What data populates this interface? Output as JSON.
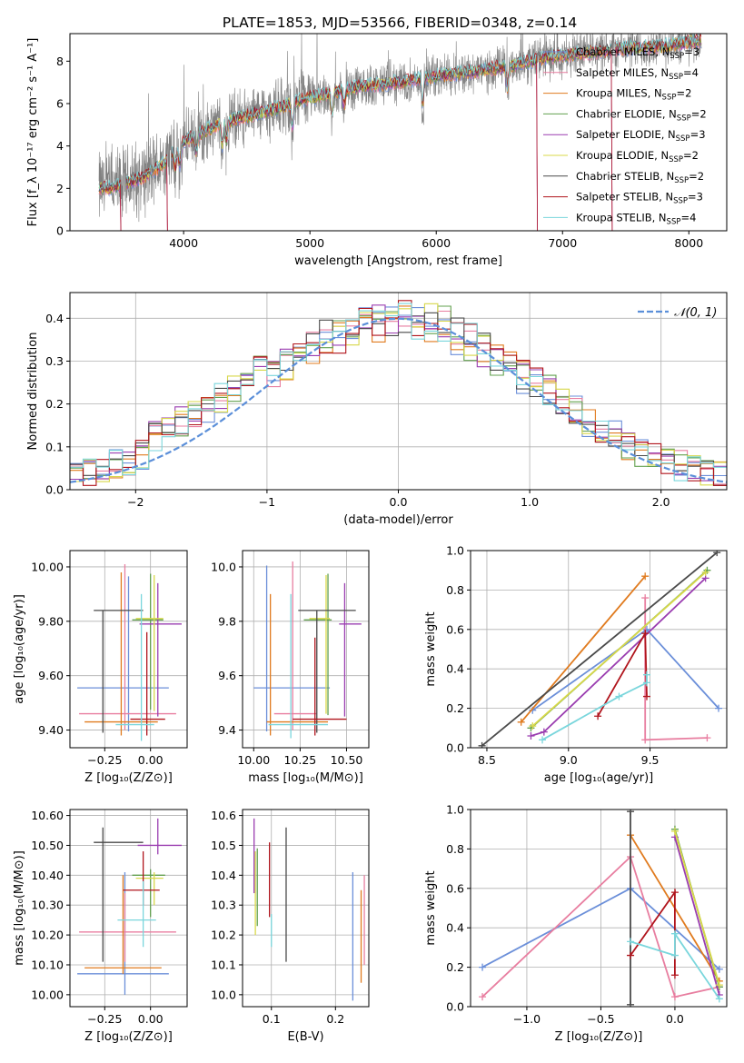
{
  "figure": {
    "suptitle": "PLATE=1853, MJD=53566, FIBERID=0348, z=0.14"
  },
  "series_styles": [
    {
      "name": "Chabrier MILES",
      "nssp": "3",
      "color": "#6b8fd9"
    },
    {
      "name": "Salpeter MILES",
      "nssp": "4",
      "color": "#e87ea0"
    },
    {
      "name": "Kroupa MILES",
      "nssp": "2",
      "color": "#e07b1f"
    },
    {
      "name": "Chabrier ELODIE",
      "nssp": "2",
      "color": "#62a04f"
    },
    {
      "name": "Salpeter ELODIE",
      "nssp": "3",
      "color": "#9a3db0"
    },
    {
      "name": "Kroupa ELODIE",
      "nssp": "2",
      "color": "#d8d84a"
    },
    {
      "name": "Chabrier STELIB",
      "nssp": "2",
      "color": "#4a4a4a"
    },
    {
      "name": "Salpeter STELIB",
      "nssp": "3",
      "color": "#b0141c"
    },
    {
      "name": "Kroupa STELIB",
      "nssp": "4",
      "color": "#7ad6dc"
    }
  ],
  "chart_data": [
    {
      "id": "spectrum",
      "type": "line",
      "xlabel": "wavelength [Angstrom, rest frame]",
      "ylabel": "Flux [f_λ 10⁻¹⁷ erg cm⁻² s⁻¹ A⁻¹]",
      "xlim": [
        3100,
        8300
      ],
      "ylim": [
        0,
        9.3
      ],
      "xticks": [
        4000,
        5000,
        6000,
        7000,
        8000
      ],
      "yticks": [
        0,
        2,
        4,
        6,
        8
      ],
      "data_color": "#808080",
      "continuum_knots": [
        [
          3330,
          2.0
        ],
        [
          3500,
          2.1
        ],
        [
          3700,
          2.6
        ],
        [
          3850,
          3.2
        ],
        [
          3950,
          4.0
        ],
        [
          4100,
          4.5
        ],
        [
          4300,
          5.1
        ],
        [
          4500,
          5.4
        ],
        [
          4700,
          5.7
        ],
        [
          4900,
          6.1
        ],
        [
          5100,
          6.4
        ],
        [
          5400,
          6.8
        ],
        [
          5700,
          7.0
        ],
        [
          6000,
          7.3
        ],
        [
          6300,
          7.5
        ],
        [
          6600,
          7.8
        ],
        [
          6900,
          8.2
        ],
        [
          7200,
          8.4
        ],
        [
          7500,
          8.6
        ],
        [
          7800,
          8.7
        ],
        [
          8100,
          9.0
        ]
      ],
      "absorption_lines": [
        [
          3934,
          0.9
        ],
        [
          3969,
          0.9
        ],
        [
          4101,
          0.6
        ],
        [
          4304,
          0.8
        ],
        [
          4340,
          0.6
        ],
        [
          4861,
          0.7
        ],
        [
          5175,
          0.6
        ],
        [
          5270,
          0.4
        ],
        [
          5893,
          0.6
        ],
        [
          6563,
          0.5
        ]
      ],
      "model_gaps": [
        [
          3500,
          3545
        ],
        [
          3870,
          3905
        ],
        [
          6800,
          6815
        ],
        [
          7390,
          7410
        ]
      ]
    },
    {
      "id": "residuals",
      "type": "histogram",
      "xlabel": "(data-model)/error",
      "ylabel": "Normed distribution",
      "xlim": [
        -2.5,
        2.5
      ],
      "ylim": [
        0,
        0.46
      ],
      "xticks": [
        -2,
        -1,
        0,
        1,
        2
      ],
      "yticks": [
        0,
        0.1,
        0.2,
        0.3,
        0.4
      ],
      "bin_width": 0.1,
      "reference": {
        "label": "𝒩(0, 1)",
        "mean": 0,
        "sigma": 1,
        "color": "#5b8fd9"
      }
    },
    {
      "id": "age-vs-Z",
      "type": "errorbar",
      "xlabel": "Z [log₁₀(Z/Z⊙)]",
      "ylabel": "age  [log₁₀(age/yr)]",
      "xlim": [
        -0.44,
        0.2
      ],
      "ylim": [
        9.335,
        10.06
      ],
      "xticks": [
        -0.25,
        0.0
      ],
      "yticks": [
        9.4,
        9.6,
        9.8,
        10.0
      ],
      "points": [
        {
          "series": 0,
          "x": -0.12,
          "xerr": [
            0.28,
            0.22
          ],
          "y": 9.555,
          "yerr": [
            0.16,
            0.41
          ]
        },
        {
          "series": 1,
          "x": -0.14,
          "xerr": [
            0.25,
            0.28
          ],
          "y": 9.46,
          "yerr": [
            0.06,
            0.55
          ]
        },
        {
          "series": 2,
          "x": -0.16,
          "xerr": [
            0.2,
            0.2
          ],
          "y": 9.43,
          "yerr": [
            0.05,
            0.55
          ]
        },
        {
          "series": 3,
          "x": 0.0,
          "xerr": [
            0.1,
            0.07
          ],
          "y": 9.805,
          "yerr": [
            0.33,
            0.17
          ]
        },
        {
          "series": 4,
          "x": 0.04,
          "xerr": [
            0.1,
            0.13
          ],
          "y": 9.79,
          "yerr": [
            0.34,
            0.15
          ]
        },
        {
          "series": 5,
          "x": 0.02,
          "xerr": [
            0.1,
            0.05
          ],
          "y": 9.81,
          "yerr": [
            0.34,
            0.16
          ]
        },
        {
          "series": 6,
          "x": -0.26,
          "xerr": [
            0.05,
            0.22
          ],
          "y": 9.84,
          "yerr": [
            0.45,
            0.0
          ]
        },
        {
          "series": 7,
          "x": -0.02,
          "xerr": [
            0.09,
            0.1
          ],
          "y": 9.44,
          "yerr": [
            0.06,
            0.32
          ]
        },
        {
          "series": 8,
          "x": -0.05,
          "xerr": [
            0.14,
            0.07
          ],
          "y": 9.42,
          "yerr": [
            0.06,
            0.48
          ]
        }
      ]
    },
    {
      "id": "age-vs-mass",
      "type": "errorbar",
      "xlabel": "mass [log₁₀(M/M⊙)]",
      "ylabel": "",
      "xlim": [
        9.94,
        10.62
      ],
      "ylim": [
        9.335,
        10.06
      ],
      "xticks": [
        10.0,
        10.25,
        10.5
      ],
      "yticks": [
        9.4,
        9.6,
        9.8,
        10.0
      ],
      "points": [
        {
          "series": 0,
          "x": 10.07,
          "xerr": [
            0.07,
            0.34
          ],
          "y": 9.555,
          "yerr": [
            0.16,
            0.45
          ]
        },
        {
          "series": 1,
          "x": 10.21,
          "xerr": [
            0.1,
            0.13
          ],
          "y": 9.46,
          "yerr": [
            0.06,
            0.56
          ]
        },
        {
          "series": 2,
          "x": 10.09,
          "xerr": [
            0.02,
            0.31
          ],
          "y": 9.43,
          "yerr": [
            0.05,
            0.47
          ]
        },
        {
          "series": 3,
          "x": 10.4,
          "xerr": [
            0.13,
            0.02
          ],
          "y": 9.805,
          "yerr": [
            0.35,
            0.17
          ]
        },
        {
          "series": 4,
          "x": 10.49,
          "xerr": [
            0.03,
            0.09
          ],
          "y": 9.79,
          "yerr": [
            0.34,
            0.15
          ]
        },
        {
          "series": 5,
          "x": 10.39,
          "xerr": [
            0.09,
            0.02
          ],
          "y": 9.81,
          "yerr": [
            0.35,
            0.16
          ]
        },
        {
          "series": 6,
          "x": 10.34,
          "xerr": [
            0.1,
            0.21
          ],
          "y": 9.84,
          "yerr": [
            0.45,
            0.0
          ]
        },
        {
          "series": 7,
          "x": 10.33,
          "xerr": [
            0.12,
            0.17
          ],
          "y": 9.44,
          "yerr": [
            0.06,
            0.3
          ]
        },
        {
          "series": 8,
          "x": 10.2,
          "xerr": [
            0.12,
            0.2
          ],
          "y": 9.42,
          "yerr": [
            0.05,
            0.48
          ]
        }
      ]
    },
    {
      "id": "weight-vs-age",
      "type": "line",
      "xlabel": "age  [log₁₀(age/yr)]",
      "ylabel": "mass weight",
      "xlim": [
        8.4,
        9.97
      ],
      "ylim": [
        0,
        1.0
      ],
      "xticks": [
        8.5,
        9.0,
        9.5
      ],
      "yticks": [
        0.0,
        0.2,
        0.4,
        0.6,
        0.8,
        1.0
      ],
      "series": [
        {
          "series": 0,
          "x": [
            8.78,
            9.48,
            9.92
          ],
          "y": [
            0.19,
            0.6,
            0.2
          ]
        },
        {
          "series": 1,
          "x": [
            9.47,
            9.47,
            9.85
          ],
          "y": [
            0.76,
            0.04,
            0.05
          ]
        },
        {
          "series": 2,
          "x": [
            8.71,
            9.47
          ],
          "y": [
            0.13,
            0.87
          ]
        },
        {
          "series": 3,
          "x": [
            8.77,
            9.85
          ],
          "y": [
            0.1,
            0.9
          ]
        },
        {
          "series": 4,
          "x": [
            8.77,
            8.85,
            9.84
          ],
          "y": [
            0.06,
            0.08,
            0.86
          ]
        },
        {
          "series": 5,
          "x": [
            8.78,
            9.84
          ],
          "y": [
            0.11,
            0.89
          ]
        },
        {
          "series": 6,
          "x": [
            8.47,
            9.91
          ],
          "y": [
            0.01,
            0.99
          ]
        },
        {
          "series": 7,
          "x": [
            9.18,
            9.47,
            9.48
          ],
          "y": [
            0.16,
            0.58,
            0.26
          ]
        },
        {
          "series": 8,
          "x": [
            8.84,
            9.31,
            9.48,
            9.48
          ],
          "y": [
            0.04,
            0.26,
            0.33,
            0.37
          ]
        }
      ]
    },
    {
      "id": "mass-vs-Z",
      "type": "errorbar",
      "xlabel": "Z [log₁₀(Z/Z⊙)]",
      "ylabel": "mass [log₁₀(M/M⊙)]",
      "xlim": [
        -0.44,
        0.2
      ],
      "ylim": [
        9.96,
        10.62
      ],
      "xticks": [
        -0.25,
        0.0
      ],
      "yticks": [
        10.0,
        10.1,
        10.2,
        10.3,
        10.4,
        10.5,
        10.6
      ],
      "points": [
        {
          "series": 0,
          "x": -0.14,
          "xerr": [
            0.26,
            0.24
          ],
          "y": 10.07,
          "yerr": [
            0.07,
            0.34
          ]
        },
        {
          "series": 1,
          "x": -0.14,
          "xerr": [
            0.25,
            0.28
          ],
          "y": 10.21,
          "yerr": [
            0.1,
            0.13
          ]
        },
        {
          "series": 2,
          "x": -0.15,
          "xerr": [
            0.21,
            0.21
          ],
          "y": 10.09,
          "yerr": [
            0.02,
            0.31
          ]
        },
        {
          "series": 3,
          "x": 0.0,
          "xerr": [
            0.1,
            0.08
          ],
          "y": 10.4,
          "yerr": [
            0.14,
            0.02
          ]
        },
        {
          "series": 4,
          "x": 0.04,
          "xerr": [
            0.11,
            0.13
          ],
          "y": 10.5,
          "yerr": [
            0.03,
            0.09
          ]
        },
        {
          "series": 5,
          "x": 0.02,
          "xerr": [
            0.1,
            0.05
          ],
          "y": 10.39,
          "yerr": [
            0.09,
            0.02
          ]
        },
        {
          "series": 6,
          "x": -0.26,
          "xerr": [
            0.05,
            0.22
          ],
          "y": 10.51,
          "yerr": [
            0.4,
            0.05
          ]
        },
        {
          "series": 7,
          "x": -0.04,
          "xerr": [
            0.11,
            0.09
          ],
          "y": 10.35,
          "yerr": [
            0.05,
            0.13
          ]
        },
        {
          "series": 8,
          "x": -0.04,
          "xerr": [
            0.14,
            0.07
          ],
          "y": 10.25,
          "yerr": [
            0.09,
            0.13
          ]
        }
      ]
    },
    {
      "id": "mass-vs-EBV",
      "type": "errorbar",
      "xlabel": "E(B-V)",
      "ylabel": "",
      "xlim": [
        0.055,
        0.252
      ],
      "ylim": [
        9.96,
        10.62
      ],
      "xticks": [
        0.1,
        0.2
      ],
      "yticks": [
        10.0,
        10.1,
        10.2,
        10.3,
        10.4,
        10.5,
        10.6
      ],
      "points": [
        {
          "series": 0,
          "x": 0.227,
          "y": 10.2,
          "yerr": [
            0.22,
            0.21
          ]
        },
        {
          "series": 1,
          "x": 0.245,
          "y": 10.3,
          "yerr": [
            0.2,
            0.1
          ]
        },
        {
          "series": 2,
          "x": 0.24,
          "y": 10.18,
          "yerr": [
            0.14,
            0.17
          ]
        },
        {
          "series": 3,
          "x": 0.078,
          "y": 10.37,
          "yerr": [
            0.14,
            0.12
          ]
        },
        {
          "series": 4,
          "x": 0.073,
          "y": 10.47,
          "yerr": [
            0.13,
            0.12
          ]
        },
        {
          "series": 5,
          "x": 0.075,
          "y": 10.35,
          "yerr": [
            0.15,
            0.13
          ]
        },
        {
          "series": 6,
          "x": 0.123,
          "y": 10.34,
          "yerr": [
            0.23,
            0.22
          ]
        },
        {
          "series": 7,
          "x": 0.097,
          "y": 10.38,
          "yerr": [
            0.12,
            0.13
          ]
        },
        {
          "series": 8,
          "x": 0.1,
          "y": 10.22,
          "yerr": [
            0.06,
            0.05
          ]
        }
      ]
    },
    {
      "id": "weight-vs-Z",
      "type": "line",
      "xlabel": "Z [log₁₀(Z/Z⊙)]",
      "ylabel": "mass weight",
      "xlim": [
        -1.38,
        0.35
      ],
      "ylim": [
        0,
        1.0
      ],
      "xticks": [
        -1.0,
        -0.5,
        0.0
      ],
      "yticks": [
        0.0,
        0.2,
        0.4,
        0.6,
        0.8,
        1.0
      ],
      "series": [
        {
          "series": 0,
          "x": [
            -1.3,
            -0.3,
            0.3
          ],
          "y": [
            0.2,
            0.6,
            0.19
          ]
        },
        {
          "series": 1,
          "x": [
            -1.3,
            -0.3,
            0.0,
            0.3
          ],
          "y": [
            0.05,
            0.76,
            0.05,
            0.1
          ]
        },
        {
          "series": 2,
          "x": [
            -0.3,
            0.3
          ],
          "y": [
            0.87,
            0.13
          ]
        },
        {
          "series": 3,
          "x": [
            0.0,
            0.3
          ],
          "y": [
            0.9,
            0.1
          ]
        },
        {
          "series": 4,
          "x": [
            0.0,
            0.3
          ],
          "y": [
            0.86,
            0.06
          ]
        },
        {
          "series": 5,
          "x": [
            0.0,
            0.3
          ],
          "y": [
            0.89,
            0.11
          ]
        },
        {
          "series": 6,
          "x": [
            -0.3,
            -0.3
          ],
          "y": [
            0.99,
            0.01
          ]
        },
        {
          "series": 7,
          "x": [
            -0.3,
            0.0,
            0.0
          ],
          "y": [
            0.26,
            0.58,
            0.16
          ]
        },
        {
          "series": 8,
          "x": [
            -0.3,
            0.0,
            0.0,
            0.3
          ],
          "y": [
            0.33,
            0.26,
            0.37,
            0.04
          ]
        }
      ]
    }
  ]
}
